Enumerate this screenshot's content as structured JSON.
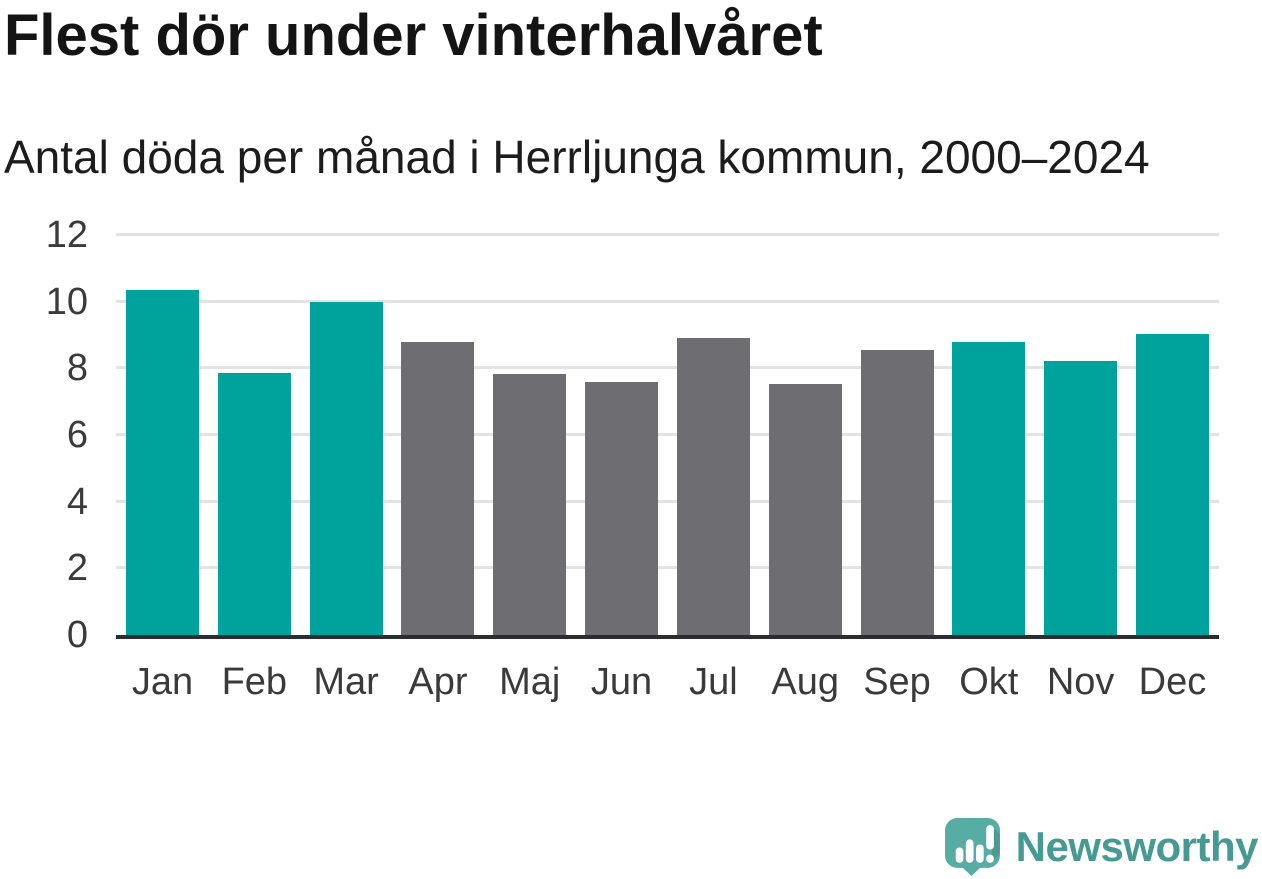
{
  "header": {
    "title": "Flest dör under vinterhalvåret",
    "subtitle": "Antal döda per månad i Herrljunga kommun, 2000–2024"
  },
  "chart_data": {
    "type": "bar",
    "title": "Flest dör under vinterhalvåret",
    "subtitle": "Antal döda per månad i Herrljunga kommun, 2000–2024",
    "categories": [
      "Jan",
      "Feb",
      "Mar",
      "Apr",
      "Maj",
      "Jun",
      "Jul",
      "Aug",
      "Sep",
      "Okt",
      "Nov",
      "Dec"
    ],
    "values": [
      10.35,
      7.87,
      10.0,
      8.78,
      7.84,
      7.58,
      8.9,
      7.53,
      8.56,
      8.78,
      8.23,
      9.04
    ],
    "bar_colors": [
      "teal",
      "teal",
      "teal",
      "gray",
      "gray",
      "gray",
      "gray",
      "gray",
      "gray",
      "teal",
      "teal",
      "teal"
    ],
    "xlabel": "",
    "ylabel": "",
    "ylim": [
      0,
      12
    ],
    "yticks": [
      0,
      2,
      4,
      6,
      8,
      10,
      12
    ],
    "grid": true,
    "legend": false,
    "palette": {
      "teal": "#00a39b",
      "gray": "#6d6d72"
    }
  },
  "footer": {
    "brand": "Newsworthy",
    "icon": "newsworthy-speech-bubble-bar-chart-icon"
  },
  "colors": {
    "background": "#ffffff",
    "title_text": "#141414",
    "subtitle_text": "#1c1c1c",
    "axis_text": "#3a3a3a",
    "gridline": "#e3e3e3",
    "axis_line": "#2b2e31",
    "bar_teal": "#00a39b",
    "bar_gray": "#6d6d72",
    "logo_bubble": "#57aca4",
    "logo_text": "#459a93"
  }
}
